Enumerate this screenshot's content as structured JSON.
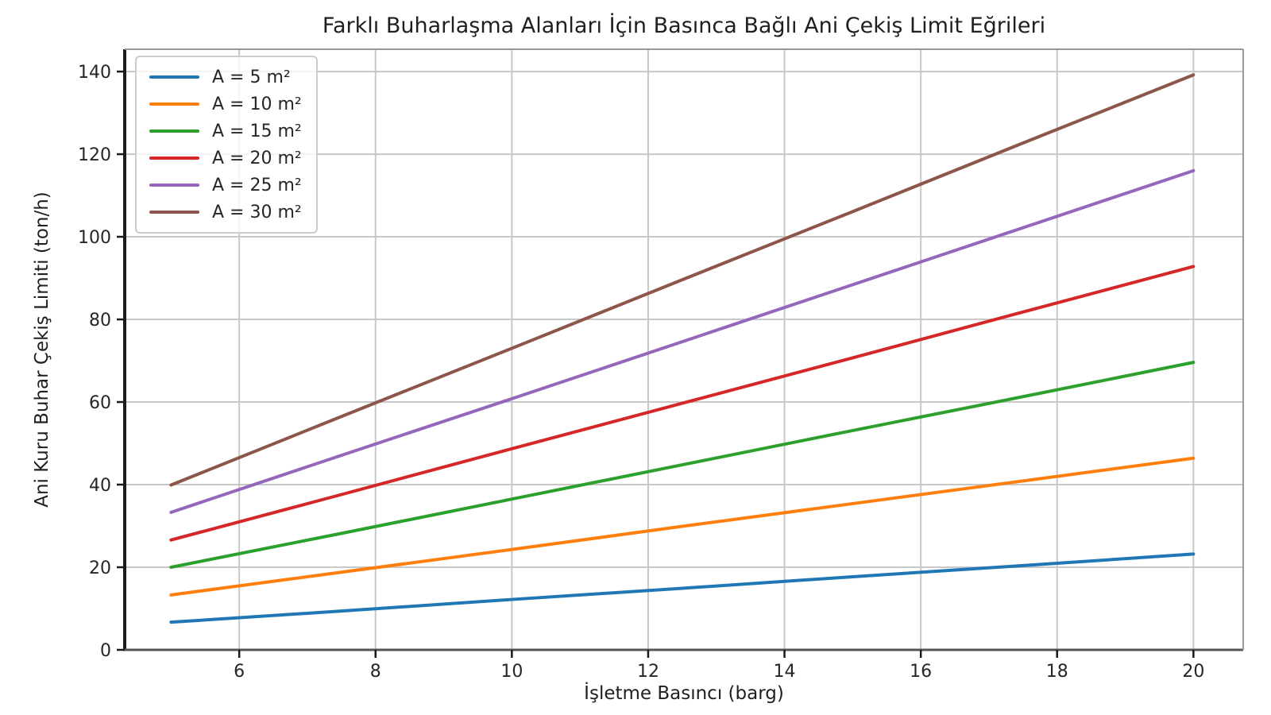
{
  "chart_data": {
    "type": "line",
    "title": "Farklı Buharlaşma Alanları İçin Basınca Bağlı Ani Çekiş Limit Eğrileri",
    "xlabel": "İşletme Basıncı (barg)",
    "ylabel": "Ani Kuru Buhar Çekiş Limiti (ton/h)",
    "x": [
      5,
      7.5,
      10,
      12.5,
      15,
      17.5,
      20
    ],
    "series": [
      {
        "name": "A = 5 m²",
        "color": "#1f77b4",
        "values": [
          6.7,
          9.4,
          12.2,
          14.9,
          17.7,
          20.4,
          23.2
        ]
      },
      {
        "name": "A = 10 m²",
        "color": "#ff7f0e",
        "values": [
          13.3,
          18.8,
          24.3,
          29.9,
          35.4,
          40.9,
          46.4
        ]
      },
      {
        "name": "A = 15 m²",
        "color": "#2ca02c",
        "values": [
          20.0,
          28.2,
          36.5,
          44.8,
          53.1,
          61.3,
          69.6
        ]
      },
      {
        "name": "A = 20 m²",
        "color": "#d62728",
        "values": [
          26.6,
          37.6,
          48.7,
          59.7,
          70.7,
          81.8,
          92.8
        ]
      },
      {
        "name": "A = 25 m²",
        "color": "#9467bd",
        "values": [
          33.3,
          47.1,
          60.8,
          74.6,
          88.4,
          102.2,
          116.0
        ]
      },
      {
        "name": "A = 30 m²",
        "color": "#8c564b",
        "values": [
          39.9,
          56.5,
          73.0,
          89.6,
          106.1,
          122.7,
          139.2
        ]
      }
    ],
    "xticks": [
      6,
      8,
      10,
      12,
      14,
      16,
      18,
      20
    ],
    "yticks": [
      0,
      20,
      40,
      60,
      80,
      100,
      120,
      140
    ],
    "xlim": [
      4.32,
      20.73
    ],
    "ylim": [
      0,
      145.4
    ],
    "grid": true,
    "legend_position": "upper left",
    "colors": {
      "grid": "#c8c8c8",
      "spine_dark": "#1a1a1a",
      "spine_bottom": "#555555",
      "spine_light": "#999999",
      "tick_text": "#262626",
      "background": "#ffffff"
    }
  }
}
